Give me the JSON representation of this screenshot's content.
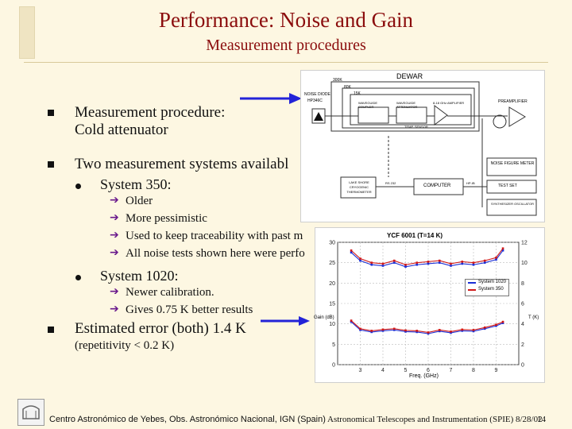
{
  "title": "Performance: Noise and Gain",
  "subtitle": "Measurement procedures",
  "bullets": {
    "b1_line1": "Measurement procedure:",
    "b1_line2": "Cold attenuator",
    "b2": "Two measurement systems availabl",
    "sys350": "System 350:",
    "sys350_items": [
      "Older",
      "More pessimistic",
      "Used to keep traceability with past m",
      "All noise tests shown here were perfo"
    ],
    "sys1020": "System 1020:",
    "sys1020_items": [
      "Newer calibration.",
      "Gives 0.75 K better results"
    ],
    "b3_line1": "Estimated error (both) 1.4 K",
    "b3_line2": "(repetitivity < 0.2 K)"
  },
  "diagram": {
    "dewar": "DEWAR",
    "t1": "300K",
    "t2": "80K",
    "t3": "15K",
    "noise_diode": "NOISE DIODE",
    "noise_diode_model": "HP346C",
    "block1": "WAVEGUIDE COUPLER",
    "block2": "WAVEGUIDE ATTENUATOR",
    "block3": "8-18 GHz AMPLIFIER",
    "temp_sensor": "TEMP. SENSOR",
    "preamp": "PREAMPLIFIER",
    "nf_meter": "NOISE FIGURE METER",
    "cryo": "LAKE SHORE CRYOGENIC THERMOMETER",
    "rs232": "RS 232",
    "computer": "COMPUTER",
    "hpib": "HP-IB",
    "test_set": "TEST SET",
    "synth": "SYNTHESIZER OSCILLATOR"
  },
  "chart_data": {
    "type": "line",
    "title": "YCF 6001 (T=14 K)",
    "xlabel": "Freq. (GHz)",
    "ylabel_left": "Gain (dB)",
    "ylabel_right": "T (K)",
    "xlim": [
      2,
      10
    ],
    "ylim_left": [
      0,
      30
    ],
    "ylim_right": [
      0,
      12
    ],
    "x_ticks": [
      "3",
      "4",
      "5",
      "6",
      "7",
      "8",
      "9"
    ],
    "y_left_ticks": [
      "0",
      "5",
      "10",
      "15",
      "20",
      "25",
      "30"
    ],
    "y_right_ticks": [
      "0",
      "2",
      "4",
      "6",
      "8",
      "10",
      "12"
    ],
    "legend": "inside-right",
    "x": [
      2.6,
      3.0,
      3.5,
      4.0,
      4.5,
      5.0,
      5.5,
      6.0,
      6.5,
      7.0,
      7.5,
      8.0,
      8.5,
      9.0,
      9.3
    ],
    "series": [
      {
        "name": "System 1020",
        "color": "#1b2fd6",
        "axis": "right",
        "values": [
          11.0,
          10.2,
          9.8,
          9.7,
          10.0,
          9.6,
          9.8,
          9.9,
          10.0,
          9.7,
          9.9,
          9.8,
          10.0,
          10.3,
          11.2
        ]
      },
      {
        "name": "System 350",
        "color": "#d01818",
        "axis": "right",
        "values": [
          11.2,
          10.4,
          10.0,
          9.9,
          10.2,
          9.8,
          10.0,
          10.1,
          10.2,
          9.9,
          10.1,
          10.0,
          10.2,
          10.5,
          11.4
        ]
      },
      {
        "name": "",
        "color": "#1b2fd6",
        "axis": "left",
        "values": [
          10.5,
          8.5,
          8.0,
          8.3,
          8.5,
          8.1,
          8.0,
          7.6,
          8.2,
          7.8,
          8.3,
          8.2,
          8.8,
          9.5,
          10.2
        ]
      },
      {
        "name": "",
        "color": "#d01818",
        "axis": "left",
        "values": [
          10.8,
          8.8,
          8.3,
          8.6,
          8.8,
          8.4,
          8.3,
          7.9,
          8.5,
          8.1,
          8.6,
          8.5,
          9.1,
          9.8,
          10.5
        ]
      }
    ]
  },
  "footer": {
    "left": "Centro Astronómico de Yebes, Obs. Astronómico Nacional, IGN (Spain)",
    "right": "Astronomical Telescopes and Instrumentation (SPIE) 8/28/02",
    "page": "14"
  }
}
